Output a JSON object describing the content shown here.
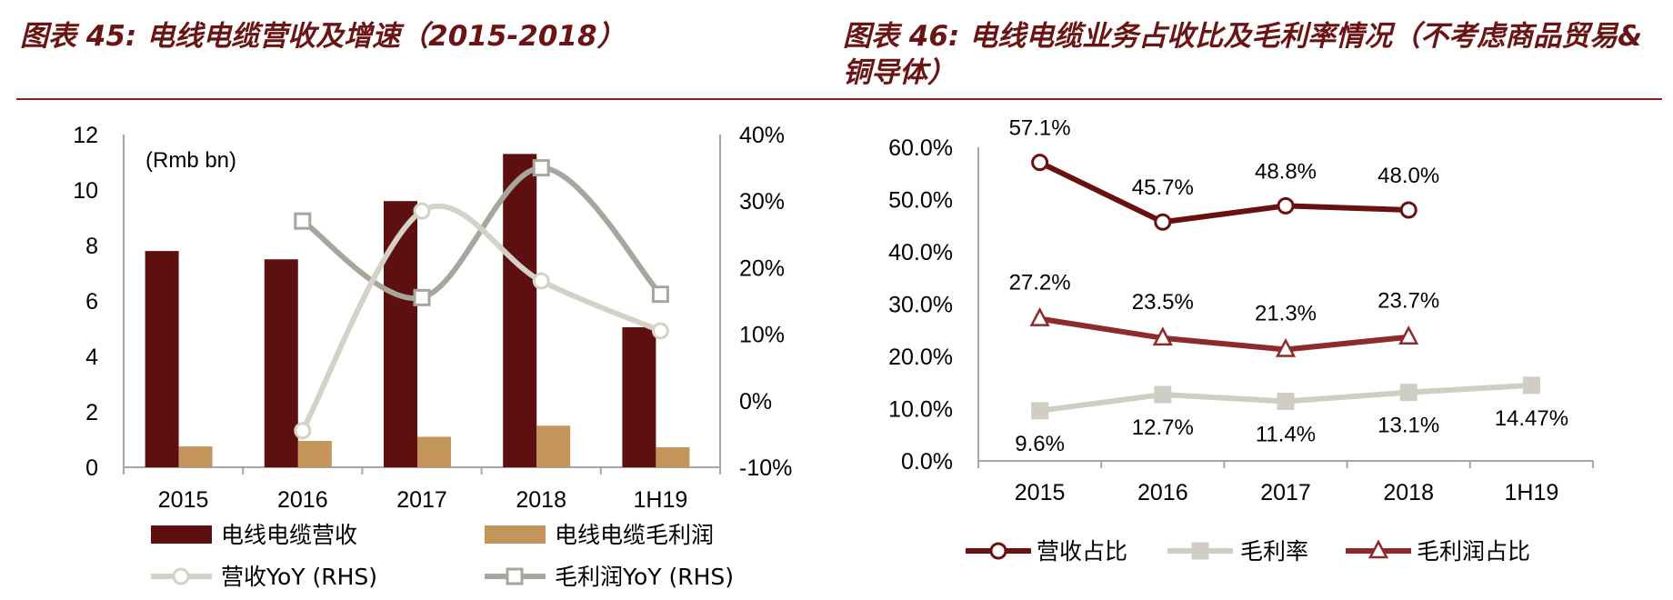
{
  "left_title": "图表 45:  电线电缆营收及增速（2015-2018）",
  "right_title": "图表 46:  电线电缆业务占收比及毛利率情况（不考虑商品贸易&铜导体）",
  "colors": {
    "title": "#6b1414",
    "revenue": "#5e1010",
    "gross_profit": "#c4955a",
    "rev_yoy": "#d4d2c6",
    "gp_yoy": "#a8a69c",
    "rev_share": "#6b1010",
    "gp_share": "#8e2a2a",
    "margin": "#cfcdc4"
  },
  "chart_data": [
    {
      "type": "bar",
      "categories": [
        "2015",
        "2016",
        "2017",
        "2018",
        "1H19"
      ],
      "unit_label": "(Rmb bn)",
      "ylim": [
        0,
        12
      ],
      "y_ticks": [
        "0",
        "2",
        "4",
        "6",
        "8",
        "10",
        "12"
      ],
      "y2lim": [
        -10,
        40
      ],
      "y2_ticks": [
        "-10%",
        "0%",
        "10%",
        "20%",
        "30%",
        "40%"
      ],
      "series": [
        {
          "name": "电线电缆营收",
          "kind": "bar",
          "axis": "left",
          "values": [
            7.8,
            7.5,
            9.6,
            11.3,
            5.05
          ]
        },
        {
          "name": "电线电缆毛利润",
          "kind": "bar",
          "axis": "left",
          "values": [
            0.75,
            0.95,
            1.1,
            1.5,
            0.72
          ]
        },
        {
          "name": "营收YoY (RHS)",
          "kind": "line",
          "axis": "right",
          "values": [
            null,
            -4.5,
            28.5,
            18,
            10.5
          ]
        },
        {
          "name": "毛利润YoY (RHS)",
          "kind": "line",
          "axis": "right",
          "values": [
            null,
            27,
            15.5,
            35,
            16
          ]
        }
      ]
    },
    {
      "type": "line",
      "categories": [
        "2015",
        "2016",
        "2017",
        "2018",
        "1H19"
      ],
      "ylim": [
        0,
        60
      ],
      "y_ticks": [
        "0.0%",
        "10.0%",
        "20.0%",
        "30.0%",
        "40.0%",
        "50.0%",
        "60.0%"
      ],
      "series": [
        {
          "name": "营收占比",
          "values": [
            57.1,
            45.7,
            48.8,
            48.0,
            null
          ],
          "labels": [
            "57.1%",
            "45.7%",
            "48.8%",
            "48.0%",
            ""
          ]
        },
        {
          "name": "毛利率",
          "values": [
            9.6,
            12.7,
            11.4,
            13.1,
            14.47
          ],
          "labels": [
            "9.6%",
            "12.7%",
            "11.4%",
            "13.1%",
            "14.47%"
          ]
        },
        {
          "name": "毛利润占比",
          "values": [
            27.2,
            23.5,
            21.3,
            23.7,
            null
          ],
          "labels": [
            "27.2%",
            "23.5%",
            "21.3%",
            "23.7%",
            ""
          ]
        }
      ]
    }
  ]
}
